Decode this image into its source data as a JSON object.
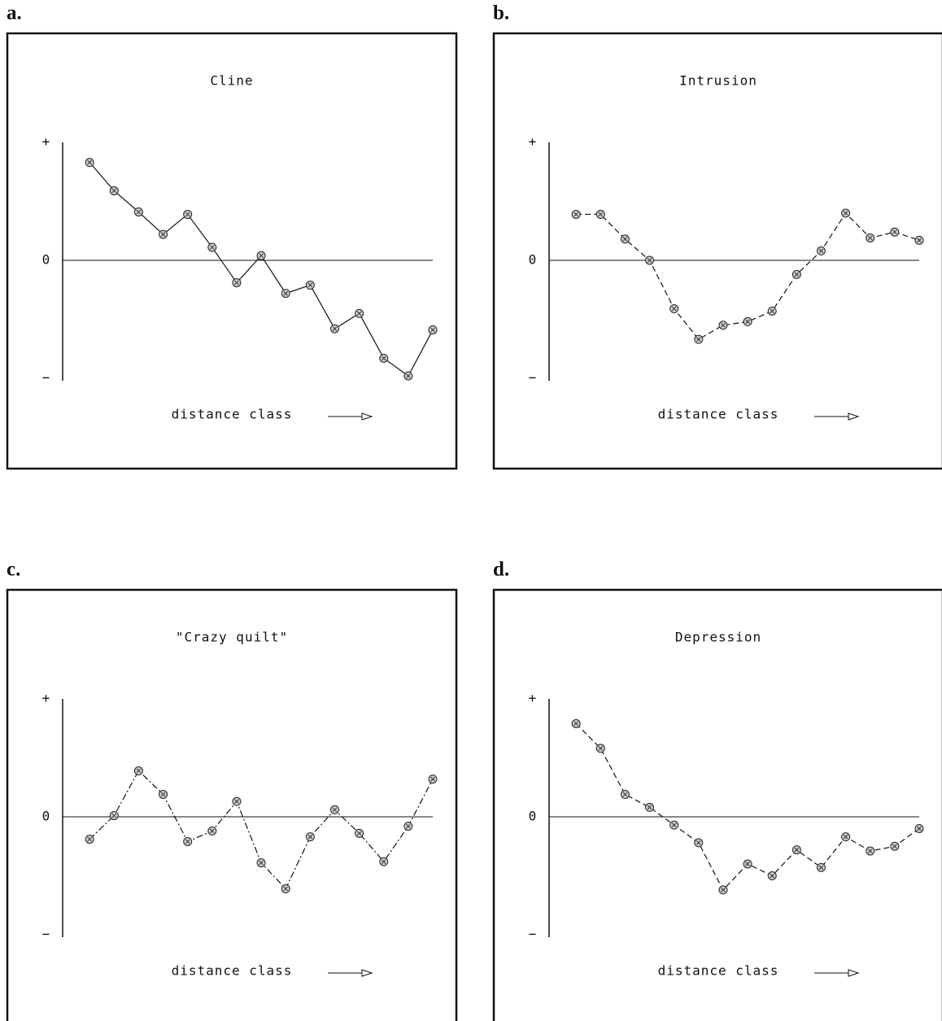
{
  "chart_data": [
    {
      "type": "line",
      "panel_label": "a.",
      "title": "Cline",
      "xlabel": "distance class",
      "line_style": "solid",
      "x": [
        1,
        2,
        3,
        4,
        5,
        6,
        7,
        8,
        9,
        10,
        11,
        12,
        13,
        14,
        15
      ],
      "values": [
        0.83,
        0.59,
        0.41,
        0.22,
        0.39,
        0.11,
        -0.19,
        0.04,
        -0.28,
        -0.21,
        -0.58,
        -0.45,
        -0.83,
        -0.98,
        -0.59
      ],
      "xlim": [
        -0.1,
        15
      ],
      "ylim": [
        -1,
        1
      ],
      "yticks": [
        {
          "value": 1,
          "label": "+"
        },
        0,
        {
          "value": -1,
          "label": "−"
        }
      ]
    },
    {
      "type": "line",
      "panel_label": "b.",
      "title": "Intrusion",
      "xlabel": "distance class",
      "line_style": "dashed",
      "x": [
        1,
        2,
        3,
        4,
        5,
        6,
        7,
        8,
        9,
        10,
        11,
        12,
        13,
        14,
        15
      ],
      "values": [
        0.39,
        0.39,
        0.18,
        0.0,
        -0.41,
        -0.67,
        -0.55,
        -0.52,
        -0.43,
        -0.12,
        0.08,
        0.4,
        0.19,
        0.24,
        0.17
      ],
      "xlim": [
        -0.1,
        15
      ],
      "ylim": [
        -1,
        1
      ],
      "yticks": [
        {
          "value": 1,
          "label": "+"
        },
        0,
        {
          "value": -1,
          "label": "−"
        }
      ]
    },
    {
      "type": "line",
      "panel_label": "c.",
      "title": "\"Crazy quilt\"",
      "xlabel": "distance class",
      "line_style": "dashdot",
      "x": [
        1,
        2,
        3,
        4,
        5,
        6,
        7,
        8,
        9,
        10,
        11,
        12,
        13,
        14,
        15
      ],
      "values": [
        -0.19,
        0.01,
        0.39,
        0.19,
        -0.21,
        -0.12,
        0.13,
        -0.39,
        -0.61,
        -0.17,
        0.06,
        -0.14,
        -0.38,
        -0.08,
        0.32
      ],
      "xlim": [
        -0.1,
        15
      ],
      "ylim": [
        -1,
        1
      ],
      "yticks": [
        {
          "value": 1,
          "label": "+"
        },
        0,
        {
          "value": -1,
          "label": "−"
        }
      ]
    },
    {
      "type": "line",
      "panel_label": "d.",
      "title": "Depression",
      "xlabel": "distance class",
      "line_style": "dashed",
      "x": [
        1,
        2,
        3,
        4,
        5,
        6,
        7,
        8,
        9,
        10,
        11,
        12,
        13,
        14,
        15
      ],
      "values": [
        0.79,
        0.58,
        0.19,
        0.08,
        -0.07,
        -0.22,
        -0.62,
        -0.4,
        -0.5,
        -0.28,
        -0.43,
        -0.17,
        -0.29,
        -0.25,
        -0.1
      ],
      "xlim": [
        -0.1,
        15
      ],
      "ylim": [
        -1,
        1
      ],
      "yticks": [
        {
          "value": 1,
          "label": "+"
        },
        0,
        {
          "value": -1,
          "label": "−"
        }
      ]
    }
  ]
}
